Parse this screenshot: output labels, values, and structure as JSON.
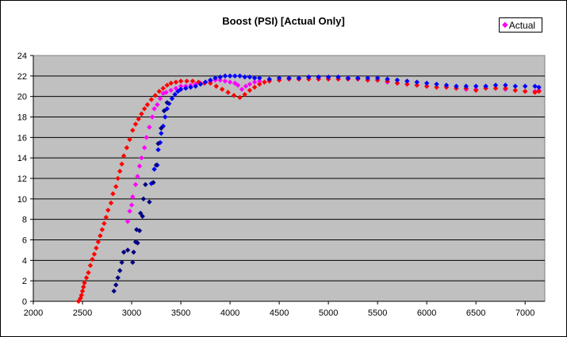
{
  "chart_data": {
    "type": "scatter",
    "title": "Boost (PSI) [Actual Only]",
    "xlabel": "",
    "ylabel": "",
    "xlim": [
      2000,
      7200
    ],
    "ylim": [
      0,
      24
    ],
    "x_ticks": [
      2000,
      2500,
      3000,
      3500,
      4000,
      4500,
      5000,
      5500,
      6000,
      6500,
      7000
    ],
    "y_ticks": [
      0,
      2,
      4,
      6,
      8,
      10,
      12,
      14,
      16,
      18,
      20,
      22,
      24
    ],
    "grid": "horizontal",
    "legend_position": "top-right",
    "legend_entries": [
      "Actual"
    ],
    "plot_background": "#c0c0c0",
    "marker": "diamond",
    "series": [
      {
        "name": "Actual",
        "color": "#ff00ff",
        "points": [
          [
            2960,
            7.8
          ],
          [
            2980,
            8.8
          ],
          [
            3000,
            9.4
          ],
          [
            3010,
            10.2
          ],
          [
            3040,
            11.4
          ],
          [
            3060,
            12.2
          ],
          [
            3080,
            13.2
          ],
          [
            3100,
            14
          ],
          [
            3130,
            15
          ],
          [
            3150,
            16
          ],
          [
            3180,
            17
          ],
          [
            3210,
            18
          ],
          [
            3230,
            18.8
          ],
          [
            3260,
            19.2
          ],
          [
            3290,
            19.8
          ],
          [
            3320,
            20.3
          ],
          [
            3350,
            20.4
          ],
          [
            3400,
            20.6
          ],
          [
            3450,
            20.8
          ],
          [
            3500,
            21
          ],
          [
            3550,
            21
          ],
          [
            3600,
            21.1
          ],
          [
            3650,
            21.2
          ],
          [
            3700,
            21.3
          ],
          [
            3750,
            21.4
          ],
          [
            3800,
            21.5
          ],
          [
            3850,
            21.6
          ],
          [
            3900,
            21.6
          ],
          [
            3950,
            21.5
          ],
          [
            4000,
            21.4
          ],
          [
            4050,
            21.3
          ],
          [
            4080,
            21.1
          ],
          [
            4120,
            20.7
          ],
          [
            4160,
            21
          ],
          [
            4200,
            21.2
          ],
          [
            4250,
            21.4
          ],
          [
            4300,
            21.5
          ],
          [
            4400,
            21.6
          ],
          [
            4500,
            21.6
          ],
          [
            4600,
            21.7
          ],
          [
            4700,
            21.7
          ],
          [
            4800,
            21.7
          ],
          [
            4900,
            21.7
          ],
          [
            5000,
            21.7
          ],
          [
            5100,
            21.7
          ],
          [
            5200,
            21.7
          ],
          [
            5300,
            21.7
          ],
          [
            5400,
            21.6
          ],
          [
            5500,
            21.6
          ],
          [
            5600,
            21.4
          ],
          [
            5700,
            21.3
          ],
          [
            5800,
            21.2
          ],
          [
            5900,
            21.1
          ],
          [
            6000,
            21
          ],
          [
            6100,
            20.9
          ],
          [
            6200,
            20.9
          ],
          [
            6300,
            20.8
          ],
          [
            6400,
            20.7
          ],
          [
            6500,
            20.7
          ],
          [
            6600,
            20.8
          ],
          [
            6700,
            20.8
          ],
          [
            6800,
            20.7
          ],
          [
            6900,
            20.6
          ],
          [
            7000,
            20.5
          ],
          [
            7100,
            20.5
          ],
          [
            7140,
            20.6
          ]
        ]
      },
      {
        "name": "",
        "color": "#ff0000",
        "points": [
          [
            2460,
            0
          ],
          [
            2480,
            0.3
          ],
          [
            2490,
            0.6
          ],
          [
            2500,
            1
          ],
          [
            2510,
            1.4
          ],
          [
            2520,
            1.8
          ],
          [
            2540,
            2.3
          ],
          [
            2560,
            2.8
          ],
          [
            2580,
            3.5
          ],
          [
            2600,
            4.1
          ],
          [
            2620,
            4.6
          ],
          [
            2640,
            5.2
          ],
          [
            2660,
            5.8
          ],
          [
            2680,
            6.4
          ],
          [
            2700,
            7
          ],
          [
            2720,
            7.6
          ],
          [
            2740,
            8.2
          ],
          [
            2760,
            8.9
          ],
          [
            2790,
            9.6
          ],
          [
            2810,
            10.5
          ],
          [
            2840,
            11.2
          ],
          [
            2860,
            12
          ],
          [
            2880,
            12.7
          ],
          [
            2900,
            13.4
          ],
          [
            2920,
            14.2
          ],
          [
            2950,
            15
          ],
          [
            2980,
            15.8
          ],
          [
            3010,
            16.7
          ],
          [
            3040,
            17.3
          ],
          [
            3070,
            17.8
          ],
          [
            3100,
            18.3
          ],
          [
            3130,
            18.8
          ],
          [
            3160,
            19.2
          ],
          [
            3200,
            19.7
          ],
          [
            3240,
            20.1
          ],
          [
            3280,
            20.5
          ],
          [
            3320,
            20.8
          ],
          [
            3360,
            21.1
          ],
          [
            3400,
            21.3
          ],
          [
            3450,
            21.4
          ],
          [
            3500,
            21.5
          ],
          [
            3560,
            21.5
          ],
          [
            3620,
            21.5
          ],
          [
            3680,
            21.4
          ],
          [
            3740,
            21.3
          ],
          [
            3800,
            21.3
          ],
          [
            3860,
            21
          ],
          [
            3920,
            20.7
          ],
          [
            3980,
            20.4
          ],
          [
            4040,
            20.1
          ],
          [
            4100,
            19.9
          ],
          [
            4150,
            20.2
          ],
          [
            4200,
            20.6
          ],
          [
            4250,
            20.9
          ],
          [
            4300,
            21.2
          ],
          [
            4350,
            21.4
          ],
          [
            4400,
            21.5
          ],
          [
            4500,
            21.6
          ],
          [
            4600,
            21.7
          ],
          [
            4700,
            21.7
          ],
          [
            4800,
            21.7
          ],
          [
            4900,
            21.7
          ],
          [
            5000,
            21.7
          ],
          [
            5100,
            21.7
          ],
          [
            5200,
            21.7
          ],
          [
            5300,
            21.7
          ],
          [
            5400,
            21.6
          ],
          [
            5500,
            21.6
          ],
          [
            5600,
            21.5
          ],
          [
            5700,
            21.3
          ],
          [
            5800,
            21.2
          ],
          [
            5900,
            21.1
          ],
          [
            6000,
            21
          ],
          [
            6100,
            20.9
          ],
          [
            6200,
            20.9
          ],
          [
            6300,
            20.8
          ],
          [
            6400,
            20.8
          ],
          [
            6500,
            20.6
          ],
          [
            6600,
            20.8
          ],
          [
            6700,
            20.8
          ],
          [
            6800,
            20.8
          ],
          [
            6900,
            20.6
          ],
          [
            7000,
            20.5
          ],
          [
            7100,
            20.4
          ],
          [
            7140,
            20.5
          ]
        ]
      },
      {
        "name": "",
        "color": "#0000ff",
        "points": [
          [
            3200,
            11.5
          ],
          [
            3230,
            12.9
          ],
          [
            3260,
            13.3
          ],
          [
            3270,
            14.8
          ],
          [
            3290,
            15.5
          ],
          [
            3300,
            16.4
          ],
          [
            3320,
            17.1
          ],
          [
            3340,
            18
          ],
          [
            3360,
            18.8
          ],
          [
            3380,
            19.3
          ],
          [
            3410,
            19.8
          ],
          [
            3440,
            20.2
          ],
          [
            3470,
            20.5
          ],
          [
            3500,
            20.7
          ],
          [
            3550,
            20.8
          ],
          [
            3600,
            20.9
          ],
          [
            3650,
            21
          ],
          [
            3700,
            21.2
          ],
          [
            3750,
            21.4
          ],
          [
            3800,
            21.6
          ],
          [
            3850,
            21.8
          ],
          [
            3900,
            21.9
          ],
          [
            3950,
            22
          ],
          [
            4000,
            22
          ],
          [
            4050,
            22
          ],
          [
            4100,
            22
          ],
          [
            4150,
            21.9
          ],
          [
            4200,
            21.9
          ],
          [
            4250,
            21.8
          ],
          [
            4300,
            21.8
          ],
          [
            4400,
            21.7
          ],
          [
            4500,
            21.8
          ],
          [
            4600,
            21.8
          ],
          [
            4700,
            21.8
          ],
          [
            4800,
            21.9
          ],
          [
            4900,
            21.9
          ],
          [
            5000,
            21.9
          ],
          [
            5100,
            21.9
          ],
          [
            5200,
            21.8
          ],
          [
            5300,
            21.8
          ],
          [
            5400,
            21.8
          ],
          [
            5500,
            21.8
          ],
          [
            5600,
            21.7
          ],
          [
            5700,
            21.6
          ],
          [
            5800,
            21.5
          ],
          [
            5900,
            21.4
          ],
          [
            6000,
            21.3
          ],
          [
            6100,
            21.2
          ],
          [
            6200,
            21.1
          ],
          [
            6300,
            21
          ],
          [
            6400,
            21
          ],
          [
            6500,
            21
          ],
          [
            6600,
            21
          ],
          [
            6700,
            21.1
          ],
          [
            6800,
            21.1
          ],
          [
            6900,
            21
          ],
          [
            7000,
            21
          ],
          [
            7100,
            21
          ],
          [
            7140,
            20.9
          ]
        ]
      },
      {
        "name": "",
        "color": "#000080",
        "points": [
          [
            2820,
            1
          ],
          [
            2840,
            1.6
          ],
          [
            2860,
            2.3
          ],
          [
            2880,
            3
          ],
          [
            2900,
            3.8
          ],
          [
            2920,
            4.8
          ],
          [
            2960,
            5
          ],
          [
            3010,
            3.8
          ],
          [
            3020,
            4.8
          ],
          [
            3040,
            5.8
          ],
          [
            3050,
            7
          ],
          [
            3060,
            5.7
          ],
          [
            3080,
            6.9
          ],
          [
            3090,
            8.6
          ],
          [
            3110,
            8.3
          ],
          [
            3120,
            10
          ],
          [
            3140,
            11.4
          ],
          [
            3180,
            9.7
          ],
          [
            3220,
            11.6
          ],
          [
            3250,
            13.3
          ],
          [
            3270,
            15.4
          ],
          [
            3300,
            16.9
          ],
          [
            3330,
            18.6
          ],
          [
            3360,
            19.4
          ]
        ]
      }
    ]
  }
}
